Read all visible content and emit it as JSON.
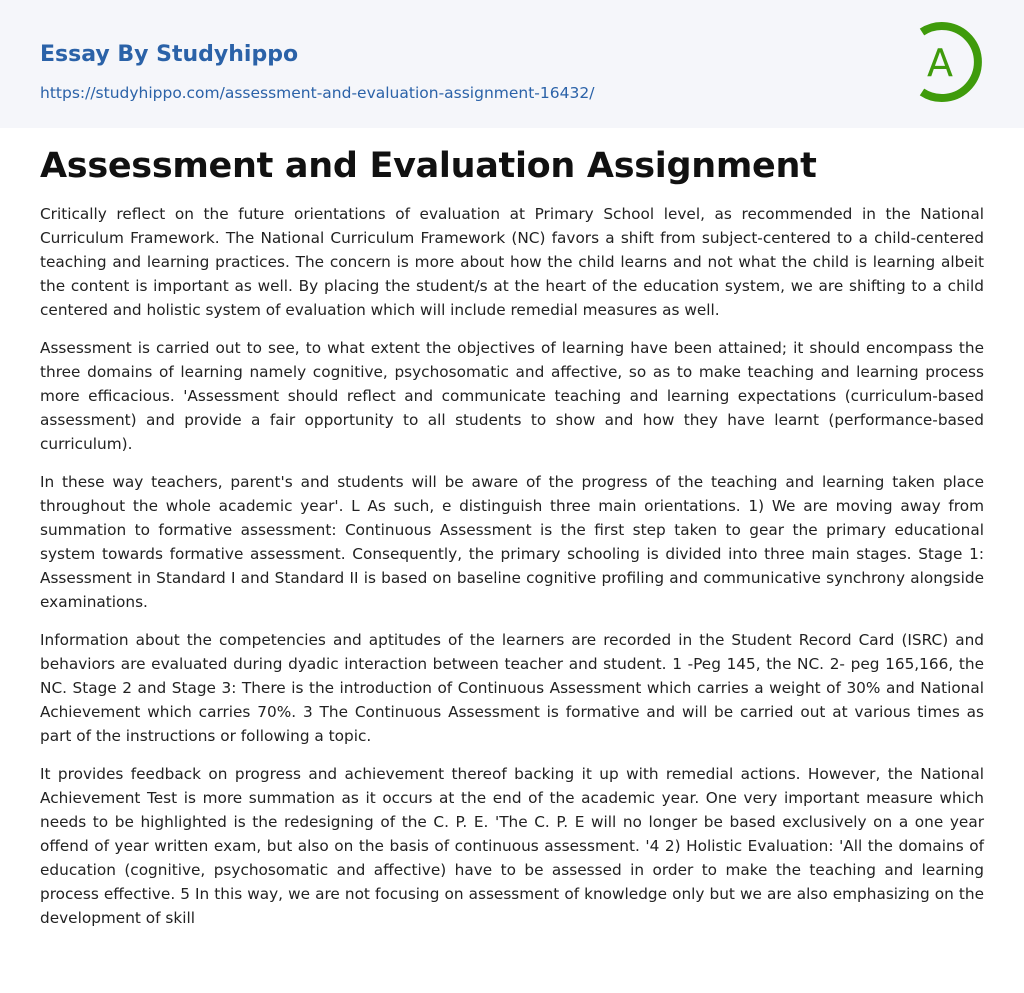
{
  "header": {
    "brand": "Essay By Studyhippo",
    "url": "https://studyhippo.com/assessment-and-evaluation-assignment-16432/",
    "logo_letter": "A",
    "logo_color": "#3f9b0b"
  },
  "article": {
    "title": "Assessment and Evaluation Assignment",
    "paragraphs": [
      "Critically reflect on the future orientations of evaluation at Primary School level, as recommended in the National Curriculum Framework. The National Curriculum Framework (NC) favors a shift from subject-centered to a child-centered teaching and learning practices. The concern is more about how the child learns and not what the child is learning albeit the content is important as well. By placing the student/s at the heart of the education system, we are shifting to a child centered and holistic system of evaluation which will include remedial measures as well.",
      "Assessment is carried out to see, to what extent the objectives of learning have been attained; it should encompass the three domains of learning namely cognitive, psychosomatic and affective, so as to make teaching and learning process more efficacious. 'Assessment should reflect and communicate teaching and learning expectations (curriculum-based assessment) and provide a fair opportunity to all students to show and how they have learnt (performance-based curriculum).",
      "In these way teachers, parent's and students will be aware of the progress of the teaching and learning taken place throughout the whole academic year'. L As such, e distinguish three main orientations. 1) We are moving away from summation to formative assessment: Continuous Assessment is the first step taken to gear the primary educational system towards formative assessment. Consequently, the primary schooling is divided into three main stages. Stage 1: Assessment in Standard I and Standard II is based on baseline cognitive profiling and communicative synchrony alongside examinations.",
      "Information about the competencies and aptitudes of the learners are recorded in the Student Record Card (ISRC) and behaviors are evaluated during dyadic interaction between teacher and student. 1 -Peg 145, the NC. 2- peg 165,166, the NC. Stage 2 and Stage 3: There is the introduction of Continuous Assessment which carries a weight of 30% and National Achievement which carries 70%. 3 The Continuous Assessment is formative and will be carried out at various times as part of the instructions or following a topic.",
      "It provides feedback on progress and achievement thereof backing it up with remedial actions. However, the National Achievement Test is more summation as it occurs at the end of the academic year. One very important measure which needs to be highlighted is the redesigning of the C. P. E. 'The C. P. E will no longer be based exclusively on a one year offend of year written exam, but also on the basis of continuous assessment. '4 2) Holistic Evaluation: 'All the domains of education (cognitive, psychosomatic and affective) have to be assessed in order to make the teaching and learning process effective. 5 In this way, we are not focusing on assessment of knowledge only but we are also emphasizing on the development of skill"
    ]
  }
}
